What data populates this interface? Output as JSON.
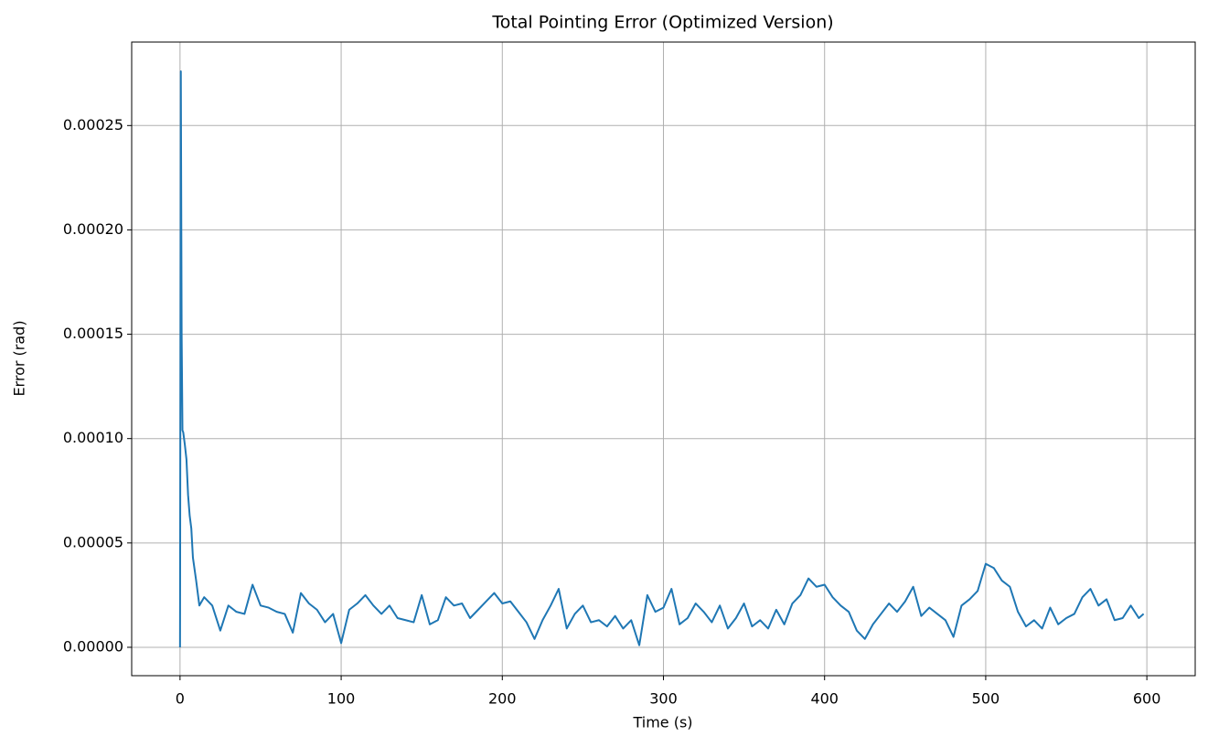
{
  "chart_data": {
    "type": "line",
    "title": "Total Pointing Error (Optimized Version)",
    "x_label": "Time (s)",
    "y_label": "Error (rad)",
    "xlim": [
      -30,
      630
    ],
    "xticks": [
      0,
      100,
      200,
      300,
      400,
      500,
      600
    ],
    "ylim": [
      -1.36e-05,
      0.00029
    ],
    "yticks": [
      {
        "value": 0,
        "label": "0.00000"
      },
      {
        "value": 5e-05,
        "label": "0.00005"
      },
      {
        "value": 0.0001,
        "label": "0.00010"
      },
      {
        "value": 0.00015,
        "label": "0.00015"
      },
      {
        "value": 0.0002,
        "label": "0.00020"
      },
      {
        "value": 0.00025,
        "label": "0.00025"
      }
    ],
    "grid": true,
    "x": [
      0,
      0.5,
      1,
      1.5,
      2,
      3,
      4,
      5,
      6,
      7,
      8,
      10,
      12,
      15,
      20,
      25,
      30,
      35,
      40,
      45,
      50,
      55,
      60,
      65,
      70,
      75,
      80,
      85,
      90,
      95,
      100,
      105,
      110,
      115,
      120,
      125,
      130,
      135,
      140,
      145,
      150,
      155,
      160,
      165,
      170,
      175,
      180,
      185,
      190,
      195,
      200,
      205,
      210,
      215,
      220,
      225,
      230,
      235,
      240,
      245,
      250,
      255,
      260,
      265,
      270,
      275,
      280,
      285,
      290,
      295,
      300,
      305,
      310,
      315,
      320,
      325,
      330,
      335,
      340,
      345,
      350,
      355,
      360,
      365,
      370,
      375,
      380,
      385,
      390,
      395,
      400,
      405,
      410,
      415,
      420,
      425,
      430,
      435,
      440,
      445,
      450,
      455,
      460,
      465,
      470,
      475,
      480,
      485,
      490,
      495,
      500,
      505,
      510,
      515,
      520,
      525,
      530,
      535,
      540,
      545,
      550,
      555,
      560,
      565,
      570,
      575,
      580,
      585,
      590,
      595,
      598
    ],
    "series": [
      {
        "color": "#1f77b4",
        "values": [
          0,
          0.000276,
          0.00015,
          0.000104,
          0.000103,
          9.7e-05,
          9e-05,
          7.3e-05,
          6.3e-05,
          5.7e-05,
          4.3e-05,
          3.2e-05,
          2e-05,
          2.4e-05,
          2e-05,
          8e-06,
          2e-05,
          1.7e-05,
          1.6e-05,
          3e-05,
          2e-05,
          1.9e-05,
          1.7e-05,
          1.6e-05,
          7e-06,
          2.6e-05,
          2.1e-05,
          1.8e-05,
          1.2e-05,
          1.6e-05,
          2e-06,
          1.8e-05,
          2.1e-05,
          2.5e-05,
          2e-05,
          1.6e-05,
          2e-05,
          1.4e-05,
          1.3e-05,
          1.2e-05,
          2.5e-05,
          1.1e-05,
          1.3e-05,
          2.4e-05,
          2e-05,
          2.1e-05,
          1.4e-05,
          1.8e-05,
          2.2e-05,
          2.6e-05,
          2.1e-05,
          2.2e-05,
          1.7e-05,
          1.2e-05,
          4e-06,
          1.3e-05,
          2e-05,
          2.8e-05,
          9e-06,
          1.6e-05,
          2e-05,
          1.2e-05,
          1.3e-05,
          1e-05,
          1.5e-05,
          9e-06,
          1.3e-05,
          1e-06,
          2.5e-05,
          1.7e-05,
          1.9e-05,
          2.8e-05,
          1.1e-05,
          1.4e-05,
          2.1e-05,
          1.7e-05,
          1.2e-05,
          2e-05,
          9e-06,
          1.4e-05,
          2.1e-05,
          1e-05,
          1.3e-05,
          9e-06,
          1.8e-05,
          1.1e-05,
          2.1e-05,
          2.5e-05,
          3.3e-05,
          2.9e-05,
          3e-05,
          2.4e-05,
          2e-05,
          1.7e-05,
          8e-06,
          4e-06,
          1.1e-05,
          1.6e-05,
          2.1e-05,
          1.7e-05,
          2.2e-05,
          2.9e-05,
          1.5e-05,
          1.9e-05,
          1.6e-05,
          1.3e-05,
          5e-06,
          2e-05,
          2.3e-05,
          2.7e-05,
          4e-05,
          3.8e-05,
          3.2e-05,
          2.9e-05,
          1.7e-05,
          1e-05,
          1.3e-05,
          9e-06,
          1.9e-05,
          1.1e-05,
          1.4e-05,
          1.6e-05,
          2.4e-05,
          2.8e-05,
          2e-05,
          2.3e-05,
          1.3e-05,
          1.4e-05,
          2e-05,
          1.4e-05,
          1.6e-05
        ]
      }
    ]
  }
}
